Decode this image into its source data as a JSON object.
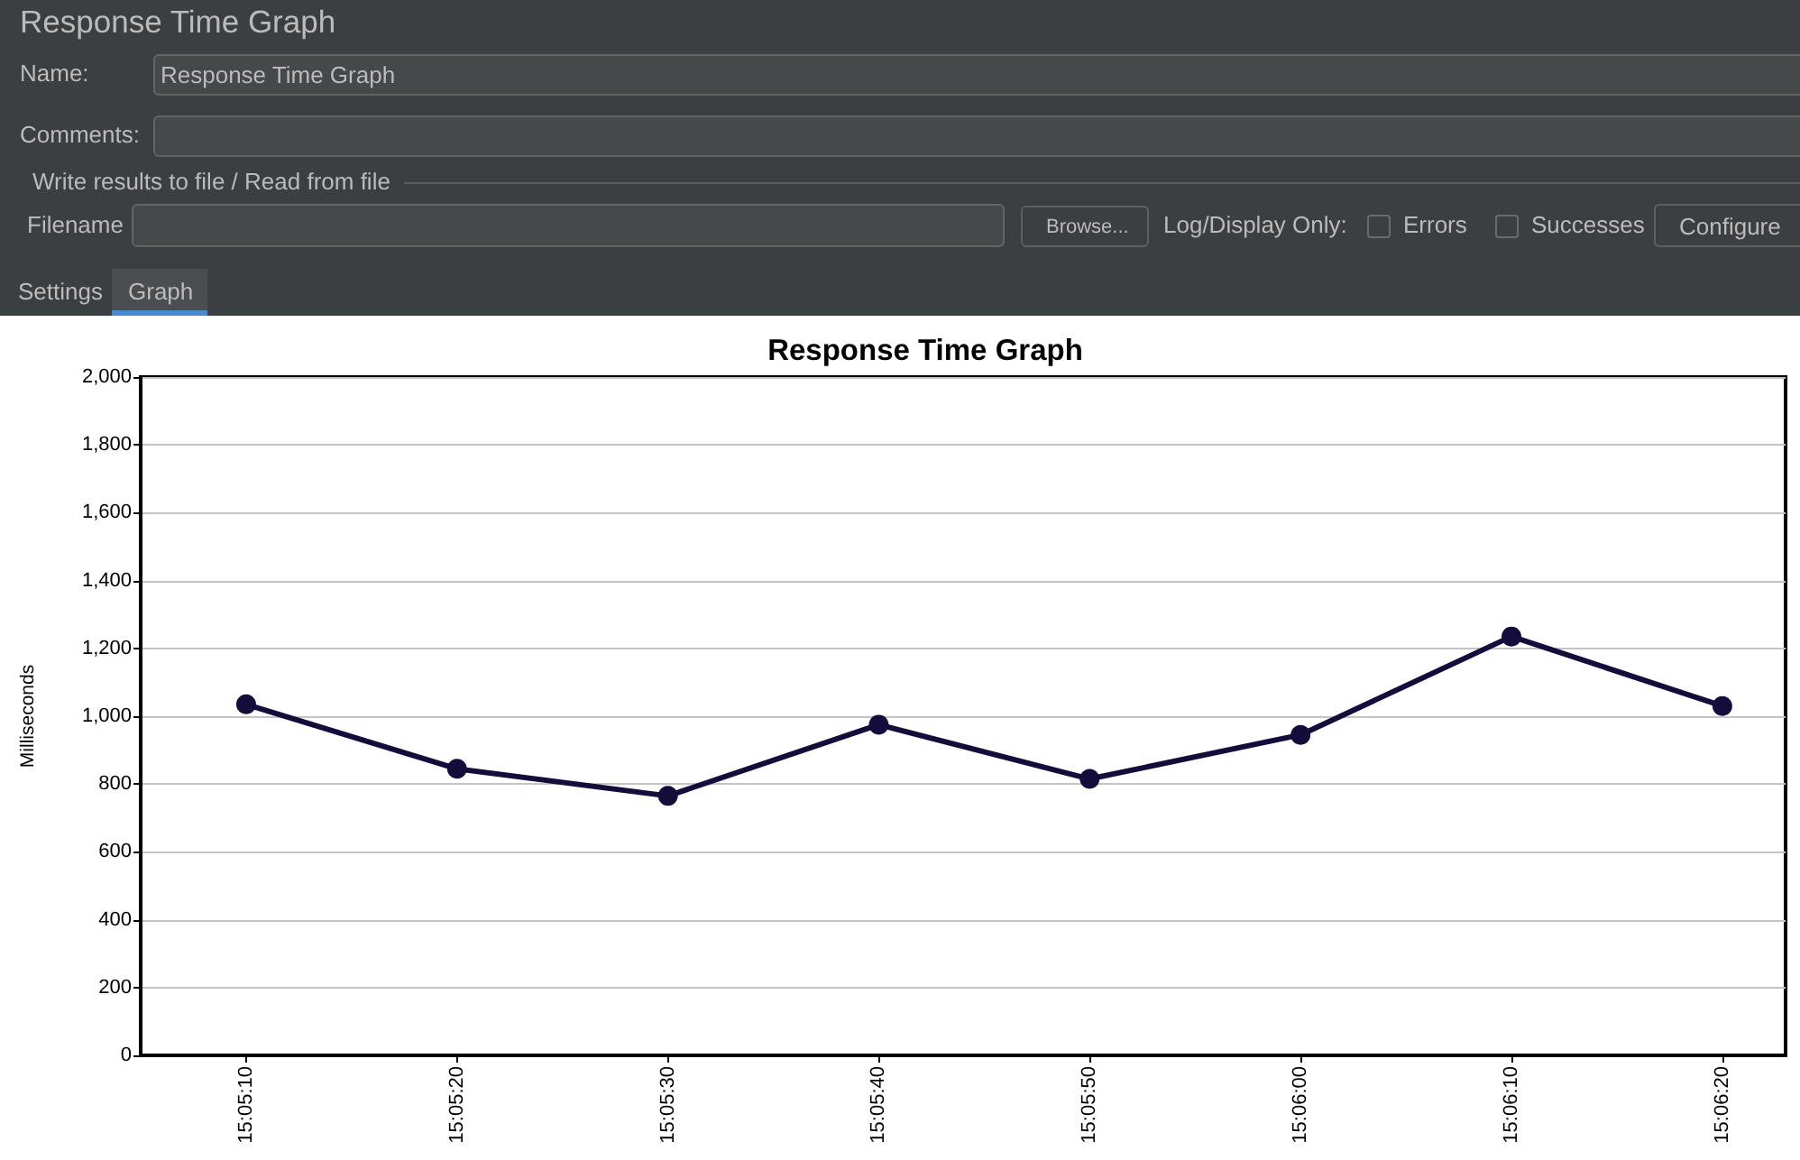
{
  "chart_data": {
    "type": "line",
    "title": "Response Time Graph",
    "ylabel": "Milliseconds",
    "x": [
      15.086111,
      15.088889,
      15.091667,
      15.094444,
      15.097222,
      15.1,
      15.102778,
      15.105556
    ],
    "series": [
      {
        "color": "#120d3a",
        "values": [
          1035,
          845,
          765,
          975,
          815,
          945,
          1235,
          1030
        ]
      }
    ],
    "xlim": [
      15.084722,
      15.106389
    ],
    "xticks": [
      {
        "value": 15.086111,
        "label": "15:05:10"
      },
      {
        "value": 15.088889,
        "label": "15:05:20"
      },
      {
        "value": 15.091667,
        "label": "15:05:30"
      },
      {
        "value": 15.094444,
        "label": "15:05:40"
      },
      {
        "value": 15.097222,
        "label": "15:05:50"
      },
      {
        "value": 15.1,
        "label": "15:06:00"
      },
      {
        "value": 15.102778,
        "label": "15:06:10"
      },
      {
        "value": 15.105556,
        "label": "15:06:20"
      }
    ],
    "ylim": [
      0,
      2000
    ],
    "yticks": [
      0,
      200,
      400,
      600,
      800,
      {
        "value": 1000,
        "label": "1,000"
      },
      {
        "value": 1200,
        "label": "1,200"
      },
      {
        "value": 1400,
        "label": "1,400"
      },
      {
        "value": 1600,
        "label": "1,600"
      },
      {
        "value": 1800,
        "label": "1,800"
      },
      {
        "value": 2000,
        "label": "2,000"
      }
    ],
    "grid": "y",
    "marker": "circle",
    "line_style": "solid",
    "annotations": [
      "Response Time Graph",
      "Name:",
      "Response Time Graph",
      "Comments:",
      "Write results to file / Read from file",
      "Filename",
      "Browse...",
      "Log/Display Only:",
      "Errors",
      "Successes",
      "Configure",
      "Settings",
      "Graph"
    ]
  }
}
